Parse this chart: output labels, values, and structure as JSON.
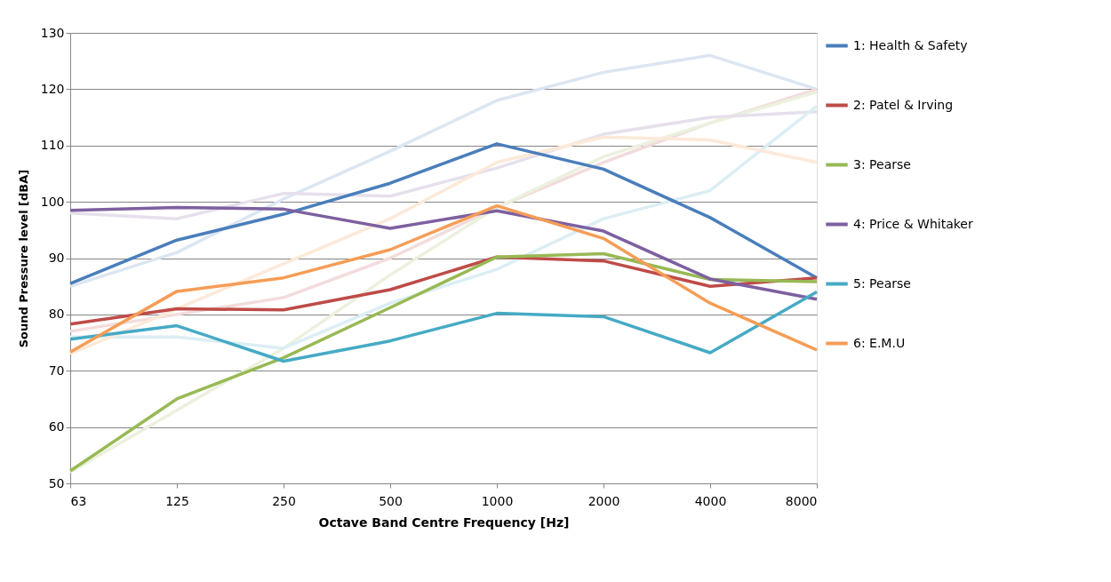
{
  "chart_data": {
    "type": "line",
    "xlabel": "Octave Band Centre Frequency [Hz]",
    "ylabel": "Sound Pressure level [dBA]",
    "categories": [
      "63",
      "125",
      "250",
      "500",
      "1000",
      "2000",
      "4000",
      "8000"
    ],
    "ylim": [
      50,
      130
    ],
    "yticks": [
      50,
      60,
      70,
      80,
      90,
      100,
      110,
      120,
      130
    ],
    "grid": "y",
    "legend": "right",
    "line_style": "solid",
    "series": [
      {
        "color": "#dce6f2",
        "values": [
          85,
          91,
          100.5,
          109,
          118,
          123,
          126,
          120
        ]
      },
      {
        "color": "#f2dcdb",
        "values": [
          77,
          80,
          83,
          90,
          99,
          107,
          114,
          120
        ]
      },
      {
        "color": "#ebf1de",
        "values": [
          52,
          63,
          74,
          87,
          99,
          108,
          114,
          119.5
        ]
      },
      {
        "color": "#e6e0ec",
        "values": [
          98,
          97,
          101.5,
          101,
          106,
          112,
          115,
          116
        ]
      },
      {
        "color": "#dbeef4",
        "values": [
          76,
          76,
          74,
          82,
          88,
          97,
          102,
          117
        ]
      },
      {
        "color": "#fde9d9",
        "values": [
          73,
          81,
          89,
          97,
          107,
          111.5,
          111,
          107
        ]
      },
      {
        "name": "1: Health & Safety",
        "color": "#4a7ebb",
        "values": [
          85.5,
          93.2,
          97.8,
          103.3,
          110.3,
          105.8,
          97.2,
          86.5
        ]
      },
      {
        "name": "2: Patel & Irving",
        "color": "#be4b48",
        "values": [
          78.3,
          81.0,
          80.8,
          84.4,
          90.2,
          89.5,
          85.0,
          86.5
        ]
      },
      {
        "name": "3: Pearse",
        "color": "#98b954",
        "values": [
          52.2,
          65,
          72.3,
          81.2,
          90.2,
          90.8,
          86.2,
          85.8
        ]
      },
      {
        "name": "4: Price & Whitaker",
        "color": "#7d60a0",
        "values": [
          98.5,
          99.0,
          98.7,
          95.3,
          98.4,
          94.8,
          86.3,
          82.7
        ]
      },
      {
        "name": "5: Pearse",
        "color": "#46aac5",
        "values": [
          75.6,
          78,
          71.7,
          75.3,
          80.2,
          79.6,
          73.2,
          84
        ]
      },
      {
        "name": "6: E.M.U",
        "color": "#f59d56",
        "values": [
          73.3,
          84.1,
          86.5,
          91.5,
          99.3,
          93.5,
          82,
          73.7
        ]
      }
    ]
  }
}
